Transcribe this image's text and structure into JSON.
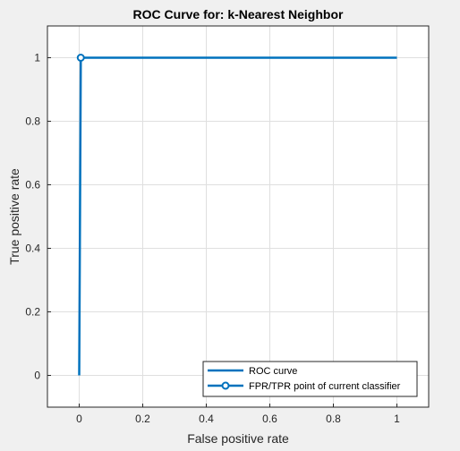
{
  "chart_data": {
    "type": "line",
    "title": "ROC Curve for: k-Nearest Neighbor",
    "xlabel": "False positive rate",
    "ylabel": "True positive rate",
    "xlim": [
      -0.1,
      1.1
    ],
    "ylim": [
      -0.1,
      1.1
    ],
    "x_ticks": [
      0,
      0.2,
      0.4,
      0.6,
      0.8,
      1
    ],
    "y_ticks": [
      0,
      0.2,
      0.4,
      0.6,
      0.8,
      1
    ],
    "x_tick_labels": [
      "0",
      "0.2",
      "0.4",
      "0.6",
      "0.8",
      "1"
    ],
    "y_tick_labels": [
      "0",
      "0.2",
      "0.4",
      "0.6",
      "0.8",
      "1"
    ],
    "grid": true,
    "legend_position": "bottom-right",
    "series": [
      {
        "name": "ROC curve",
        "color": "#0072bd",
        "x": [
          0,
          0.005,
          1
        ],
        "y": [
          0,
          1,
          1
        ]
      },
      {
        "name": "FPR/TPR point of current classifier",
        "color": "#0072bd",
        "marker": "circle",
        "x": [
          0.005
        ],
        "y": [
          1
        ]
      }
    ]
  }
}
